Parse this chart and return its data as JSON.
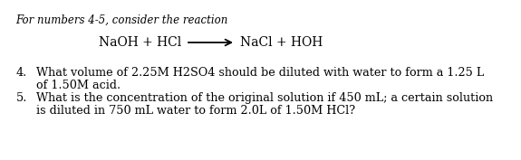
{
  "header_italic": "For numbers 4-5, consider the reaction",
  "reaction_left": "NaOH + HCl",
  "reaction_arrow": "—→",
  "reaction_right": "NaCl + HOH",
  "q4_number": "4.",
  "q4_indent": "What volume of 2.25M H2SO4 should be diluted with water to form a 1.25 L",
  "q4_line2": "of 1.50M acid.",
  "q5_number": "5.",
  "q5_indent": "What is the concentration of the original solution if 450 mL; a certain solution",
  "q5_line2": "is diluted in 750 mL water to form 2.0L of 1.50M HCl?",
  "background_color": "#ffffff",
  "text_color": "#000000",
  "font_size_header": 8.5,
  "font_size_reaction": 10.0,
  "font_size_questions": 9.2
}
